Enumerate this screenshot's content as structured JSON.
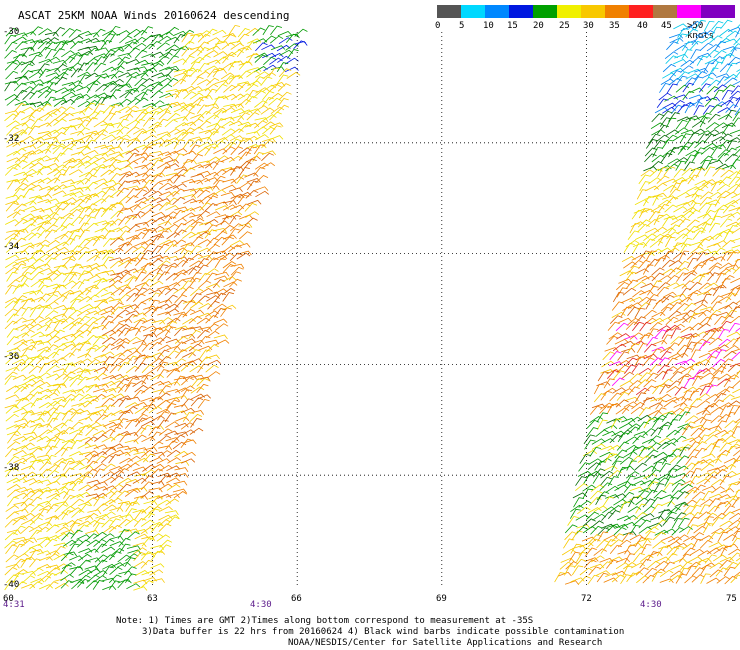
{
  "title": "ASCAT 25KM NOAA Winds 20160624 descending",
  "colorbar": {
    "labels": [
      "0",
      "5",
      "10",
      "15",
      "20",
      "25",
      "30",
      "35",
      "40",
      "45",
      ">50 knots"
    ],
    "colors": [
      "#555555",
      "#00d8ff",
      "#0088ff",
      "#0018e0",
      "#00a000",
      "#f0f000",
      "#f8c800",
      "#f08000",
      "#ff2020",
      "#b07840",
      "#ff00ff",
      "#8000c0"
    ]
  },
  "map": {
    "lat_labels": [
      "-30",
      "-32",
      "-34",
      "-36",
      "-38",
      "-40"
    ],
    "lon_labels": [
      "60",
      "63",
      "66",
      "69",
      "72",
      "75"
    ],
    "time_labels": [
      "4:31",
      "4:30",
      "4:30"
    ],
    "lat_range": [
      -40,
      -30
    ],
    "lon_range": [
      60,
      75
    ]
  },
  "notes": {
    "line1": "Note: 1) Times are GMT 2)Times along bottom correspond to measurement at -35S",
    "line2": "3)Data buffer is 22 hrs from 20160624 4) Black wind barbs indicate possible contamination",
    "line3": "NOAA/NESDIS/Center for Satellite Applications and Research"
  }
}
